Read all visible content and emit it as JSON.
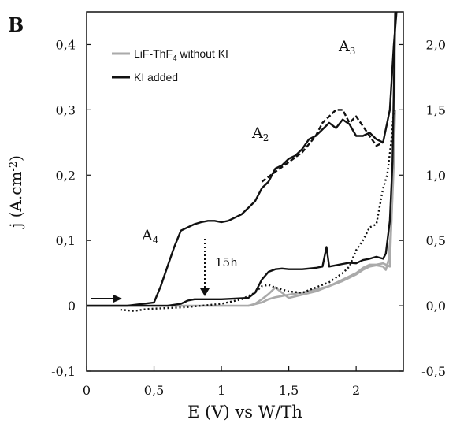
{
  "chart_data": {
    "type": "line",
    "panel_label": "B",
    "xlabel": "E (V) vs W/Th",
    "ylabel": "j (A.cm-2)",
    "xlim": [
      0,
      2.35
    ],
    "ylim": [
      -0.1,
      0.45
    ],
    "y2lim": [
      -0.5,
      2.25
    ],
    "x_ticks": [
      "0",
      "0,5",
      "1",
      "1,5",
      "2"
    ],
    "y_ticks": [
      "-0,1",
      "0",
      "0,1",
      "0,2",
      "0,3",
      "0,4"
    ],
    "y2_ticks": [
      "-0,5",
      "0,0",
      "0,5",
      "1,0",
      "1,5",
      "2,0"
    ],
    "legend": {
      "placement": "top-left",
      "entries": [
        {
          "label": "LiF-ThF4 without KI",
          "color": "#aaaaaa"
        },
        {
          "label": "KI added",
          "color": "#111111"
        }
      ]
    },
    "annotations": [
      {
        "text": "A",
        "sub": "2",
        "x": 1.35,
        "y": 0.265
      },
      {
        "text": "A",
        "sub": "3",
        "x": 1.97,
        "y": 0.39
      },
      {
        "text": "A",
        "sub": "4",
        "x": 0.45,
        "y": 0.105
      },
      {
        "text": "15h",
        "x": 0.98,
        "y": 0.065
      }
    ],
    "series": [
      {
        "name": "LiF-ThF4 without KI",
        "color": "#aaaaaa",
        "x": [
          0,
          0.2,
          0.4,
          0.6,
          0.8,
          1.0,
          1.2,
          1.3,
          1.35,
          1.4,
          1.5,
          1.6,
          1.7,
          1.8,
          1.9,
          2.0,
          2.05,
          2.1,
          2.15,
          2.2,
          2.22,
          2.24,
          2.26,
          2.28,
          2.29
        ],
        "y": [
          0,
          0,
          0,
          0,
          0,
          0,
          0,
          0.005,
          0.01,
          0.013,
          0.017,
          0.02,
          0.025,
          0.03,
          0.038,
          0.048,
          0.055,
          0.06,
          0.062,
          0.06,
          0.055,
          0.07,
          0.12,
          0.22,
          0.45
        ]
      },
      {
        "name": "LiF-ThF4 without KI (return)",
        "color": "#aaaaaa",
        "x": [
          2.29,
          2.25,
          2.2,
          2.15,
          2.1,
          2.05,
          2.0,
          1.9,
          1.8,
          1.7,
          1.6,
          1.5,
          1.45,
          1.4,
          1.35,
          1.3,
          1.25,
          1.2
        ],
        "y": [
          0.3,
          0.06,
          0.065,
          0.063,
          0.063,
          0.058,
          0.05,
          0.04,
          0.03,
          0.022,
          0.017,
          0.012,
          0.02,
          0.028,
          0.018,
          0.01,
          0.003,
          0.0
        ]
      },
      {
        "name": "KI added (right axis)",
        "color": "#111111",
        "x": [
          0,
          0.3,
          0.5,
          0.55,
          0.6,
          0.65,
          0.7,
          0.75,
          0.8,
          0.85,
          0.9,
          0.95,
          1.0,
          1.05,
          1.1,
          1.15,
          1.2,
          1.25,
          1.3,
          1.35,
          1.4,
          1.45,
          1.5,
          1.55,
          1.6,
          1.65,
          1.7,
          1.75,
          1.8,
          1.85,
          1.9,
          1.95,
          2.0,
          2.05,
          2.1,
          2.15,
          2.2,
          2.25,
          2.28,
          2.3
        ],
        "y": [
          0,
          0,
          0.005,
          0.03,
          0.06,
          0.09,
          0.115,
          0.12,
          0.125,
          0.128,
          0.13,
          0.13,
          0.128,
          0.13,
          0.135,
          0.14,
          0.15,
          0.16,
          0.18,
          0.19,
          0.21,
          0.215,
          0.225,
          0.23,
          0.24,
          0.255,
          0.26,
          0.27,
          0.28,
          0.272,
          0.285,
          0.278,
          0.26,
          0.26,
          0.265,
          0.255,
          0.25,
          0.3,
          0.4,
          0.45
        ]
      },
      {
        "name": "KI added (right axis, dashed variant)",
        "color": "#111111",
        "x": [
          1.3,
          1.4,
          1.5,
          1.6,
          1.7,
          1.75,
          1.8,
          1.85,
          1.9,
          1.95,
          2.0,
          2.05,
          2.1,
          2.15,
          2.2
        ],
        "y": [
          0.19,
          0.205,
          0.22,
          0.235,
          0.26,
          0.28,
          0.29,
          0.3,
          0.3,
          0.28,
          0.29,
          0.275,
          0.26,
          0.245,
          0.25
        ]
      },
      {
        "name": "KI added (left axis)",
        "color": "#111111",
        "x": [
          0,
          0.3,
          0.6,
          0.7,
          0.75,
          0.8,
          0.85,
          1.0,
          1.2,
          1.25,
          1.3,
          1.35,
          1.4,
          1.45,
          1.5,
          1.6,
          1.7,
          1.75,
          1.78,
          1.8,
          1.85,
          1.9,
          1.95,
          2.0,
          2.05,
          2.1,
          2.15,
          2.2,
          2.22,
          2.25,
          2.27,
          2.29
        ],
        "y": [
          0,
          0,
          0,
          0.003,
          0.008,
          0.01,
          0.01,
          0.01,
          0.012,
          0.02,
          0.04,
          0.052,
          0.056,
          0.057,
          0.056,
          0.056,
          0.058,
          0.06,
          0.09,
          0.06,
          0.062,
          0.064,
          0.066,
          0.065,
          0.07,
          0.072,
          0.075,
          0.072,
          0.08,
          0.13,
          0.22,
          0.45
        ]
      },
      {
        "name": "KI added (left axis, dotted after 15h)",
        "color": "#111111",
        "x": [
          0.25,
          0.35,
          0.45,
          0.55,
          0.65,
          0.75,
          0.85,
          1.0,
          1.15,
          1.25,
          1.3,
          1.35,
          1.4,
          1.5,
          1.6,
          1.7,
          1.8,
          1.9,
          1.95,
          2.0,
          2.05,
          2.1,
          2.15,
          2.2,
          2.23,
          2.26,
          2.28
        ],
        "y": [
          -0.006,
          -0.008,
          -0.005,
          -0.004,
          -0.003,
          -0.002,
          0.0,
          0.003,
          0.01,
          0.02,
          0.03,
          0.032,
          0.028,
          0.022,
          0.02,
          0.028,
          0.036,
          0.05,
          0.06,
          0.085,
          0.1,
          0.12,
          0.125,
          0.18,
          0.2,
          0.25,
          0.3
        ]
      }
    ]
  }
}
